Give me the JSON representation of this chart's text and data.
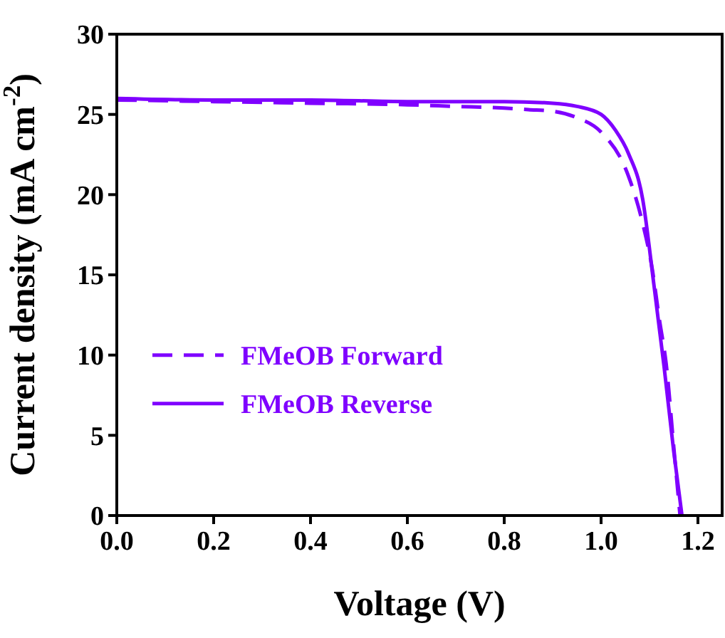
{
  "chart_data": {
    "type": "line",
    "xlabel": "Voltage (V)",
    "ylabel": "Current density (mA cm$^{-2}$)",
    "xlim": [
      0,
      1.25
    ],
    "ylim": [
      0,
      30
    ],
    "xticks": [
      {
        "value": 0,
        "label": "0.0"
      },
      0.2,
      0.4,
      0.6,
      0.8,
      {
        "value": 1,
        "label": "1.0"
      },
      1.2
    ],
    "yticks": [
      0,
      5,
      10,
      15,
      20,
      25,
      30
    ],
    "grid": false,
    "legend": "bottom left",
    "series": [
      {
        "name": "FMeOB Forward",
        "color": "#7f00ff",
        "line_style": "dashed",
        "x": [
          0,
          0.2,
          0.4,
          0.6,
          0.7,
          0.8,
          0.85,
          0.9,
          0.95,
          1.0,
          1.056,
          1.086,
          1.106,
          1.12,
          1.135,
          1.15,
          1.163
        ],
        "values": [
          25.9,
          25.8,
          25.7,
          25.6,
          25.5,
          25.4,
          25.3,
          25.2,
          24.8,
          23.9,
          21.2,
          18.2,
          15.3,
          12.3,
          9.3,
          4.3,
          0
        ]
      },
      {
        "name": "FMeOB Reverse",
        "color": "#7f00ff",
        "line_style": "solid",
        "x": [
          0,
          0.2,
          0.4,
          0.6,
          0.8,
          0.9,
          0.95,
          1.0,
          1.03,
          1.056,
          1.086,
          1.109,
          1.13,
          1.15,
          1.167
        ],
        "values": [
          26,
          25.9,
          25.9,
          25.8,
          25.8,
          25.7,
          25.5,
          25,
          24,
          22.6,
          19.7,
          14.4,
          9.3,
          4,
          0
        ]
      }
    ]
  }
}
